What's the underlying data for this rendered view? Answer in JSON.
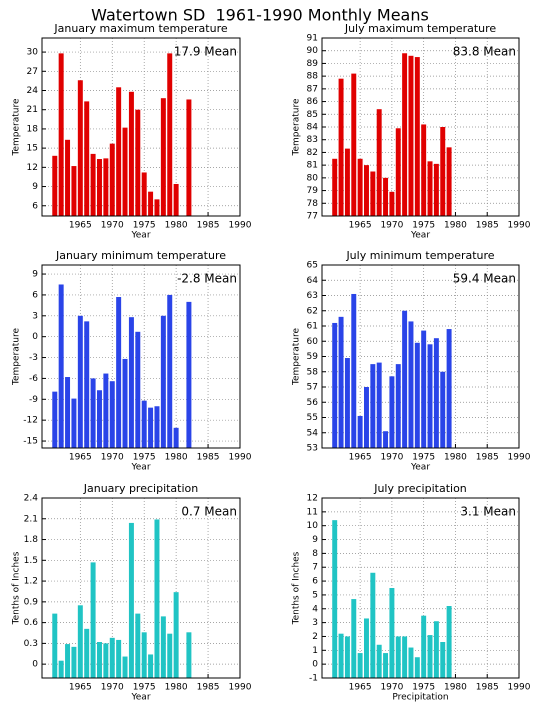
{
  "title": "Watertown SD  1961-1990 Monthly Means",
  "chart_data": [
    {
      "type": "bar",
      "title": "January maximum temperature",
      "annotation": "17.9 Mean",
      "xlabel": "Year",
      "ylabel": "Temperature",
      "x": [
        1961,
        1962,
        1963,
        1964,
        1965,
        1966,
        1967,
        1968,
        1969,
        1970,
        1971,
        1972,
        1973,
        1974,
        1975,
        1976,
        1977,
        1978,
        1979,
        1980,
        1982
      ],
      "values": [
        13.8,
        29.8,
        16.3,
        12.2,
        25.6,
        22.3,
        14.1,
        13.3,
        13.4,
        15.7,
        24.5,
        18.2,
        23.8,
        21.0,
        11.2,
        8.2,
        7.0,
        22.8,
        29.8,
        9.4,
        22.6
      ],
      "color": "#e00000",
      "xlim": [
        1959,
        1990
      ],
      "xticks": [
        1965,
        1970,
        1975,
        1980,
        1985,
        1990
      ],
      "ylim": [
        4.4,
        32.2
      ],
      "yticks": [
        6,
        9,
        12,
        15,
        18,
        21,
        24,
        27,
        30
      ],
      "grid": true
    },
    {
      "type": "bar",
      "title": "July maximum temperature",
      "annotation": "83.8 Mean",
      "xlabel": "Year",
      "ylabel": "Temperature",
      "x": [
        1961,
        1962,
        1963,
        1964,
        1965,
        1966,
        1967,
        1968,
        1969,
        1970,
        1971,
        1972,
        1973,
        1974,
        1975,
        1976,
        1977,
        1978,
        1979
      ],
      "values": [
        81.5,
        87.8,
        82.3,
        88.2,
        81.5,
        81.0,
        80.5,
        85.4,
        80.0,
        78.9,
        83.9,
        89.8,
        89.6,
        89.5,
        84.2,
        81.3,
        81.1,
        84.0,
        82.4
      ],
      "color": "#e00000",
      "xlim": [
        1959,
        1990
      ],
      "xticks": [
        1965,
        1970,
        1975,
        1980,
        1985,
        1990
      ],
      "ylim": [
        77,
        91
      ],
      "yticks": [
        77,
        78,
        79,
        80,
        81,
        82,
        83,
        84,
        85,
        86,
        87,
        88,
        89,
        90,
        91
      ],
      "grid": true
    },
    {
      "type": "bar",
      "title": "January minimum temperature",
      "annotation": "-2.8 Mean",
      "xlabel": "Year",
      "ylabel": "Temperature",
      "x": [
        1961,
        1962,
        1963,
        1964,
        1965,
        1966,
        1967,
        1968,
        1969,
        1970,
        1971,
        1972,
        1973,
        1974,
        1975,
        1976,
        1977,
        1978,
        1979,
        1980,
        1982
      ],
      "values": [
        -7.9,
        7.5,
        -5.8,
        -8.9,
        3.0,
        2.2,
        -6.0,
        -7.7,
        -5.3,
        -6.4,
        5.7,
        -3.2,
        2.8,
        0.7,
        -9.2,
        -10.2,
        -10.0,
        3.0,
        6.0,
        -13.1,
        5.0
      ],
      "color": "#2a44e8",
      "xlim": [
        1959,
        1990
      ],
      "xticks": [
        1965,
        1970,
        1975,
        1980,
        1985,
        1990
      ],
      "ylim": [
        -16,
        10.3
      ],
      "yticks": [
        -15,
        -12,
        -9,
        -6,
        -3,
        0,
        3,
        6,
        9
      ],
      "grid": true
    },
    {
      "type": "bar",
      "title": "July minimum temperature",
      "annotation": "59.4 Mean",
      "xlabel": "Year",
      "ylabel": "Temperature",
      "x": [
        1961,
        1962,
        1963,
        1964,
        1965,
        1966,
        1967,
        1968,
        1969,
        1970,
        1971,
        1972,
        1973,
        1974,
        1975,
        1976,
        1977,
        1978,
        1979
      ],
      "values": [
        61.2,
        61.6,
        58.9,
        63.1,
        55.1,
        57.0,
        58.5,
        58.6,
        54.1,
        57.7,
        58.5,
        62.0,
        61.3,
        59.9,
        60.7,
        59.8,
        60.2,
        58.0,
        60.8
      ],
      "color": "#2a44e8",
      "xlim": [
        1959,
        1990
      ],
      "xticks": [
        1965,
        1970,
        1975,
        1980,
        1985,
        1990
      ],
      "ylim": [
        53,
        65
      ],
      "yticks": [
        53,
        54,
        55,
        56,
        57,
        58,
        59,
        60,
        61,
        62,
        63,
        64,
        65
      ],
      "grid": true
    },
    {
      "type": "bar",
      "title": "January precipitation",
      "annotation": "0.7 Mean",
      "xlabel": "Year",
      "ylabel": "Tenths of Inches",
      "x": [
        1961,
        1962,
        1963,
        1964,
        1965,
        1966,
        1967,
        1968,
        1969,
        1970,
        1971,
        1972,
        1973,
        1974,
        1975,
        1976,
        1977,
        1978,
        1979,
        1980,
        1982
      ],
      "values": [
        0.73,
        0.05,
        0.29,
        0.25,
        0.85,
        0.51,
        1.47,
        0.32,
        0.3,
        0.38,
        0.35,
        0.11,
        2.04,
        0.73,
        0.46,
        0.14,
        2.09,
        0.69,
        0.44,
        1.04,
        0.46
      ],
      "color": "#20c4c4",
      "xlim": [
        1959,
        1990
      ],
      "xticks": [
        1965,
        1970,
        1975,
        1980,
        1985,
        1990
      ],
      "ylim": [
        -0.2,
        2.4
      ],
      "yticks": [
        0,
        0.3,
        0.6,
        0.9,
        1.2,
        1.5,
        1.8,
        2.1,
        2.4
      ],
      "grid": true
    },
    {
      "type": "bar",
      "title": "July precipitation",
      "annotation": "3.1 Mean",
      "xlabel": "Precipitation",
      "ylabel": "Tenths of Inches",
      "x": [
        1961,
        1962,
        1963,
        1964,
        1965,
        1966,
        1967,
        1968,
        1969,
        1970,
        1971,
        1972,
        1973,
        1974,
        1975,
        1976,
        1977,
        1978,
        1979
      ],
      "values": [
        10.4,
        2.2,
        2.0,
        4.7,
        0.8,
        3.3,
        6.6,
        1.4,
        0.8,
        5.5,
        2.0,
        2.0,
        1.2,
        0.5,
        3.5,
        2.1,
        3.1,
        1.6,
        4.2
      ],
      "color": "#20c4c4",
      "xlim": [
        1959,
        1990
      ],
      "xticks": [
        1965,
        1970,
        1975,
        1980,
        1985,
        1990
      ],
      "ylim": [
        -1,
        12
      ],
      "yticks": [
        -1,
        0,
        1,
        2,
        3,
        4,
        5,
        6,
        7,
        8,
        9,
        10,
        11,
        12
      ],
      "grid": true
    }
  ]
}
